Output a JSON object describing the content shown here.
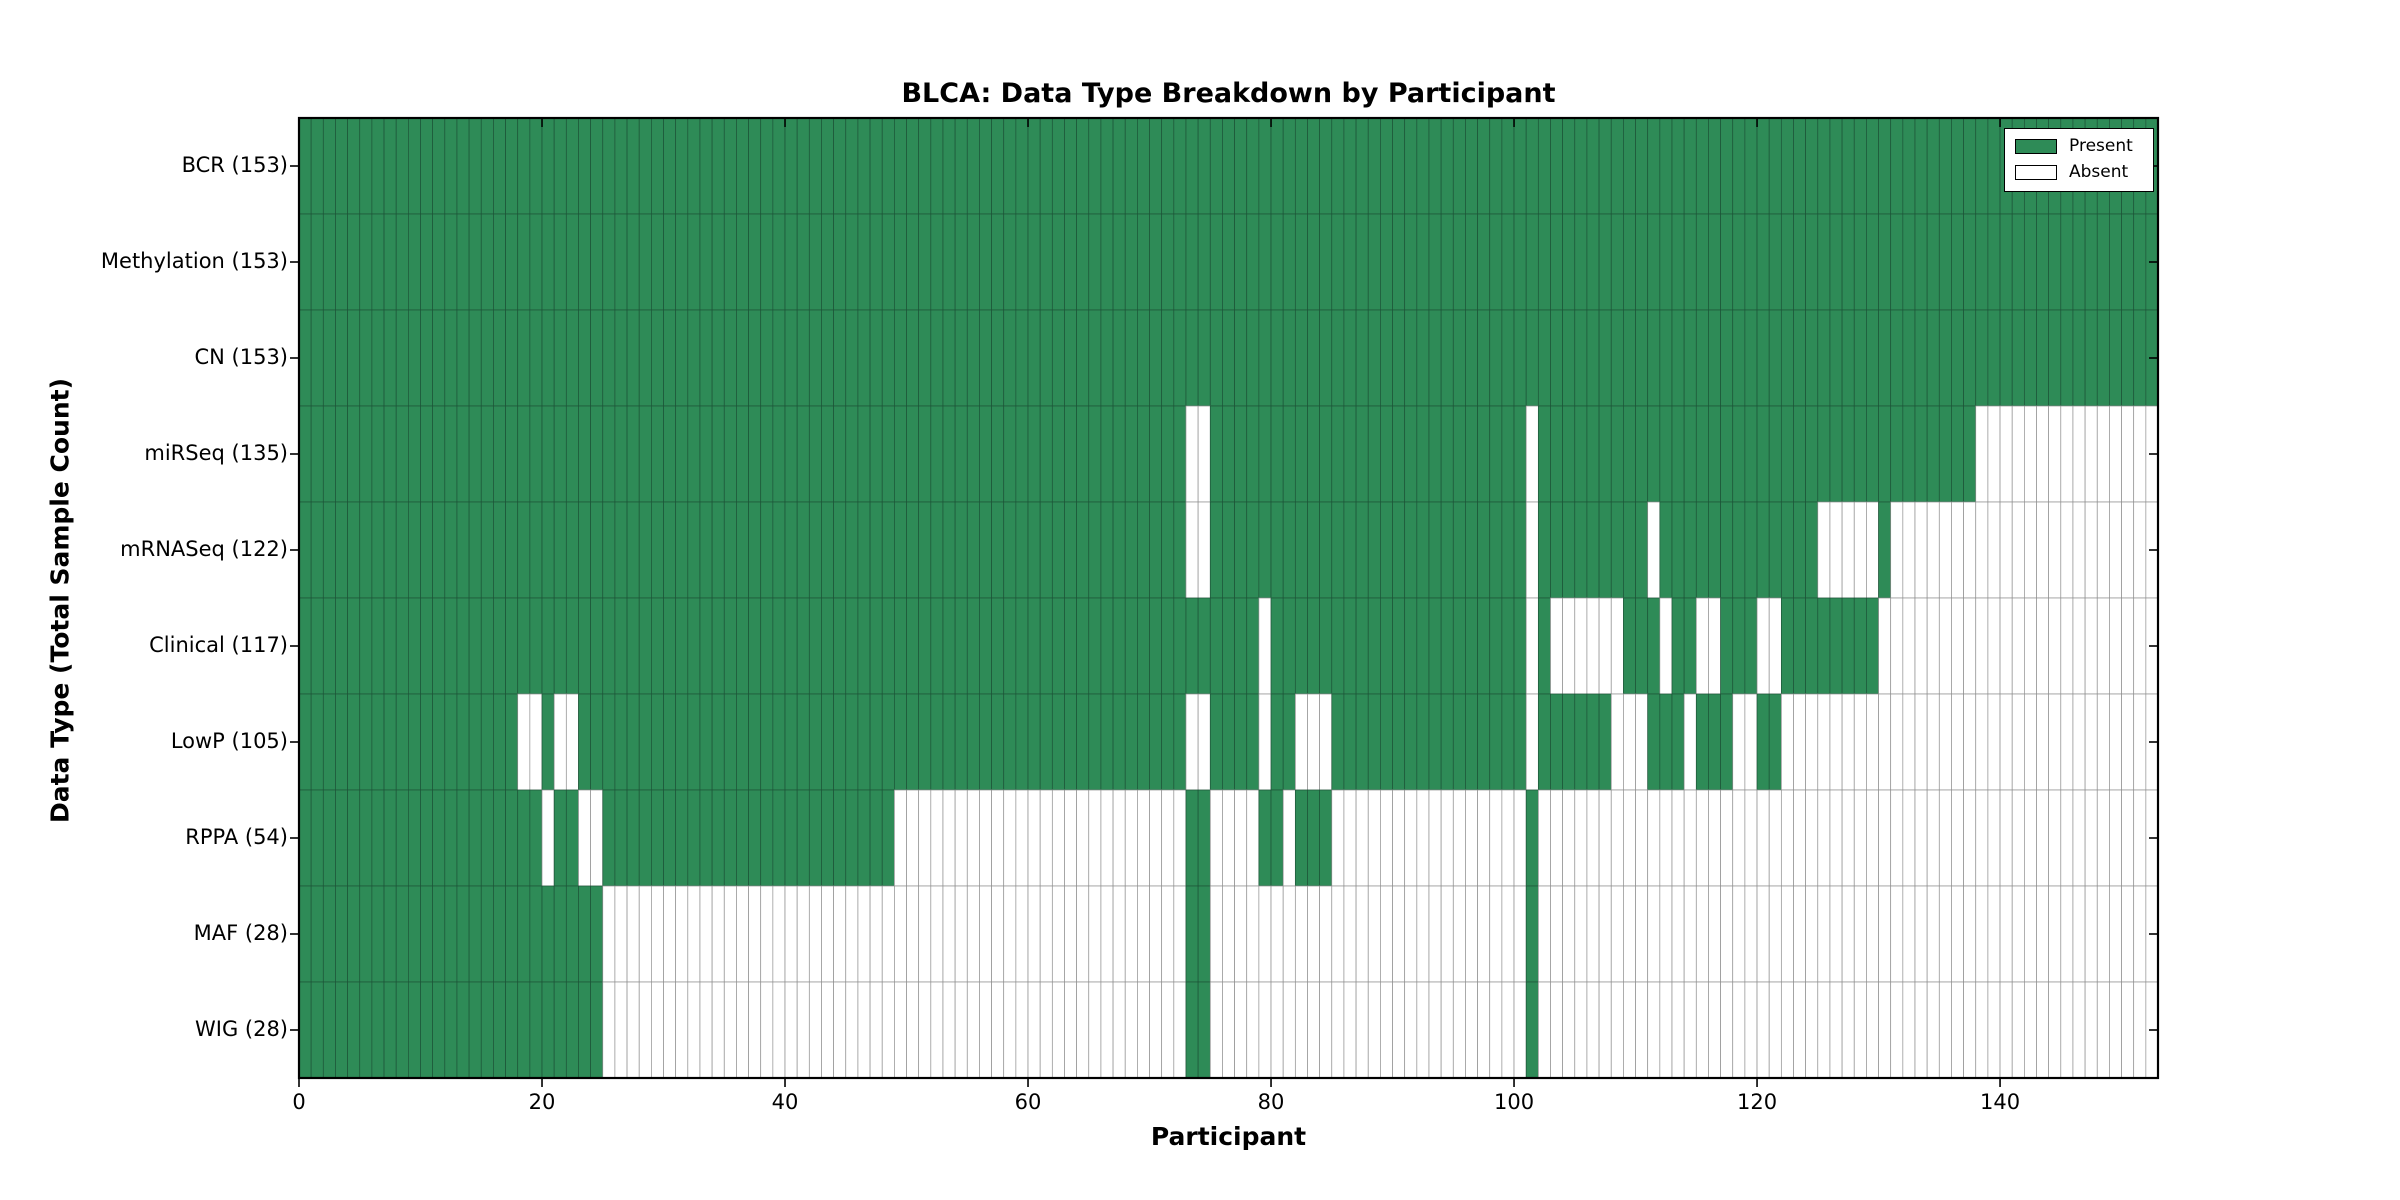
{
  "chart_data": {
    "type": "heatmap",
    "title": "BLCA: Data Type Breakdown by Participant",
    "xlabel": "Participant",
    "ylabel": "Data Type (Total Sample Count)",
    "n_participants": 153,
    "x_ticks": [
      0,
      20,
      40,
      60,
      80,
      100,
      120,
      140
    ],
    "x_range": [
      0,
      153
    ],
    "grid": "cell-borders",
    "legend_position": "upper right",
    "colors": {
      "present": "#2E8B57",
      "absent": "#ffffff",
      "cell_border_on_green": "#1d5438",
      "cell_border_on_white": "#8f8f8f",
      "frame": "#000000"
    },
    "legend": [
      {
        "label": "Present",
        "color": "#2E8B57"
      },
      {
        "label": "Absent",
        "color": "#ffffff"
      }
    ],
    "rows": [
      {
        "label": "BCR (153)",
        "name": "BCR",
        "present_count": 153,
        "absent_ranges": []
      },
      {
        "label": "Methylation (153)",
        "name": "Methylation",
        "present_count": 153,
        "absent_ranges": []
      },
      {
        "label": "CN (153)",
        "name": "CN",
        "present_count": 153,
        "absent_ranges": []
      },
      {
        "label": "miRSeq (135)",
        "name": "miRSeq",
        "present_count": 135,
        "absent_ranges": [
          [
            73,
            74
          ],
          [
            101,
            101
          ],
          [
            138,
            152
          ]
        ]
      },
      {
        "label": "mRNASeq (122)",
        "name": "mRNASeq",
        "present_count": 122,
        "absent_ranges": [
          [
            73,
            74
          ],
          [
            101,
            101
          ],
          [
            111,
            111
          ],
          [
            125,
            129
          ],
          [
            131,
            152
          ]
        ]
      },
      {
        "label": "Clinical (117)",
        "name": "Clinical",
        "present_count": 117,
        "absent_ranges": [
          [
            79,
            79
          ],
          [
            101,
            101
          ],
          [
            103,
            108
          ],
          [
            112,
            112
          ],
          [
            115,
            116
          ],
          [
            120,
            121
          ],
          [
            130,
            152
          ]
        ]
      },
      {
        "label": "LowP (105)",
        "name": "LowP",
        "present_count": 105,
        "absent_ranges": [
          [
            18,
            19
          ],
          [
            21,
            22
          ],
          [
            73,
            74
          ],
          [
            79,
            79
          ],
          [
            82,
            84
          ],
          [
            101,
            101
          ],
          [
            108,
            110
          ],
          [
            114,
            114
          ],
          [
            118,
            119
          ],
          [
            122,
            152
          ]
        ]
      },
      {
        "label": "RPPA (54)",
        "name": "RPPA",
        "present_count": 54,
        "absent_ranges": [
          [
            20,
            20
          ],
          [
            23,
            24
          ],
          [
            49,
            72
          ],
          [
            75,
            78
          ],
          [
            81,
            81
          ],
          [
            85,
            100
          ],
          [
            102,
            152
          ]
        ]
      },
      {
        "label": "MAF (28)",
        "name": "MAF",
        "present_count": 28,
        "absent_ranges": [
          [
            25,
            72
          ],
          [
            75,
            100
          ],
          [
            102,
            152
          ]
        ]
      },
      {
        "label": "WIG (28)",
        "name": "WIG",
        "present_count": 28,
        "absent_ranges": [
          [
            25,
            72
          ],
          [
            75,
            100
          ],
          [
            102,
            152
          ]
        ]
      }
    ]
  }
}
